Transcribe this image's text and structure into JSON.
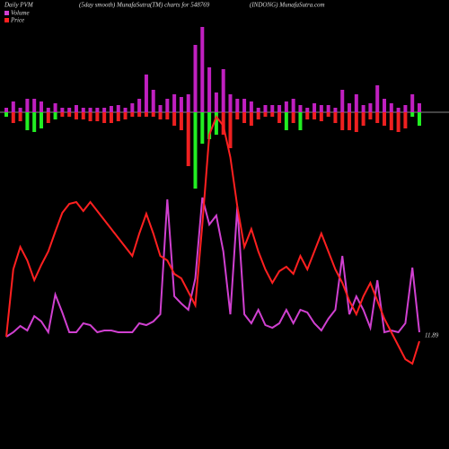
{
  "chart_data": {
    "type": "pvm",
    "title": "Daily PVM",
    "subtitle": "(5day smooth) MunafaSutra(TM) charts for 548769",
    "site": "(INDONG) MunafaSutra.com",
    "last_label": "11.89",
    "ylim": [
      0,
      150
    ],
    "bars_up": {
      "color": "#c020c0",
      "values": [
        5,
        12,
        5,
        15,
        15,
        12,
        5,
        10,
        5,
        5,
        8,
        5,
        5,
        5,
        5,
        7,
        8,
        5,
        10,
        15,
        42,
        25,
        8,
        15,
        20,
        17,
        20,
        75,
        95,
        50,
        22,
        48,
        20,
        15,
        15,
        12,
        5,
        8,
        8,
        8,
        12,
        15,
        8,
        5,
        10,
        8,
        8,
        5,
        25,
        10,
        20,
        8,
        10,
        30,
        15,
        10,
        5,
        8,
        20,
        10
      ]
    },
    "bars_down": {
      "values": [
        5,
        12,
        10,
        20,
        22,
        18,
        12,
        8,
        5,
        5,
        8,
        8,
        10,
        10,
        12,
        12,
        10,
        8,
        5,
        5,
        5,
        5,
        8,
        8,
        15,
        20,
        60,
        85,
        35,
        30,
        25,
        25,
        40,
        8,
        12,
        15,
        8,
        5,
        5,
        12,
        20,
        12,
        20,
        8,
        8,
        10,
        5,
        12,
        20,
        20,
        22,
        15,
        8,
        12,
        15,
        20,
        22,
        18,
        5,
        15
      ],
      "colors": [
        "#22ee22",
        "#ee2020",
        "#ee2020",
        "#22ee22",
        "#22ee22",
        "#22ee22",
        "#ee2020",
        "#22ee22",
        "#ee2020",
        "#ee2020",
        "#ee2020",
        "#ee2020",
        "#ee2020",
        "#ee2020",
        "#ee2020",
        "#ee2020",
        "#ee2020",
        "#ee2020",
        "#ee2020",
        "#ee2020",
        "#ee2020",
        "#ee2020",
        "#ee2020",
        "#ee2020",
        "#ee2020",
        "#ee2020",
        "#ee2020",
        "#22ee22",
        "#22ee22",
        "#22ee22",
        "#22ee22",
        "#ee2020",
        "#ee2020",
        "#ee2020",
        "#ee2020",
        "#ee2020",
        "#ee2020",
        "#ee2020",
        "#ee2020",
        "#ee2020",
        "#22ee22",
        "#ee2020",
        "#22ee22",
        "#ee2020",
        "#ee2020",
        "#ee2020",
        "#ee2020",
        "#ee2020",
        "#ee2020",
        "#ee2020",
        "#ee2020",
        "#ee2020",
        "#ee2020",
        "#ee2020",
        "#ee2020",
        "#ee2020",
        "#ee2020",
        "#ee2020",
        "#22ee22",
        "#22ee22"
      ]
    },
    "series": [
      {
        "name": "Volume",
        "color": "#d040d0",
        "values": [
          17.5,
          20,
          23.5,
          21,
          29,
          26,
          20,
          41,
          31,
          20,
          20,
          25,
          24,
          20,
          21,
          21,
          20,
          20,
          20,
          25,
          24,
          26,
          30,
          94,
          40,
          36,
          32.5,
          50,
          95,
          80,
          85,
          65,
          30,
          90,
          30,
          25,
          32.5,
          24,
          22.5,
          25,
          32.5,
          25,
          32.5,
          31,
          25,
          21,
          27.5,
          32.5,
          62.5,
          30,
          40,
          32.5,
          22.5,
          49,
          20,
          21,
          20,
          25,
          56,
          20
        ]
      },
      {
        "name": "Price",
        "color": "#ff2020",
        "values": [
          17.5,
          55,
          67.5,
          60,
          49,
          57.5,
          65,
          76,
          86.5,
          91.5,
          92.5,
          87.5,
          92.5,
          87.5,
          82.5,
          77.5,
          72.5,
          67.5,
          62.5,
          75,
          86,
          75,
          62.5,
          60,
          52.5,
          50,
          42.5,
          35,
          80,
          130,
          140,
          135,
          117.5,
          90,
          67.5,
          77.5,
          65,
          55,
          47.5,
          54,
          56.5,
          52.5,
          62.5,
          55,
          65,
          75,
          65,
          55,
          47.5,
          37.5,
          30,
          40,
          47.5,
          37.5,
          27.5,
          20,
          12.5,
          5,
          2.5,
          15
        ]
      }
    ]
  }
}
